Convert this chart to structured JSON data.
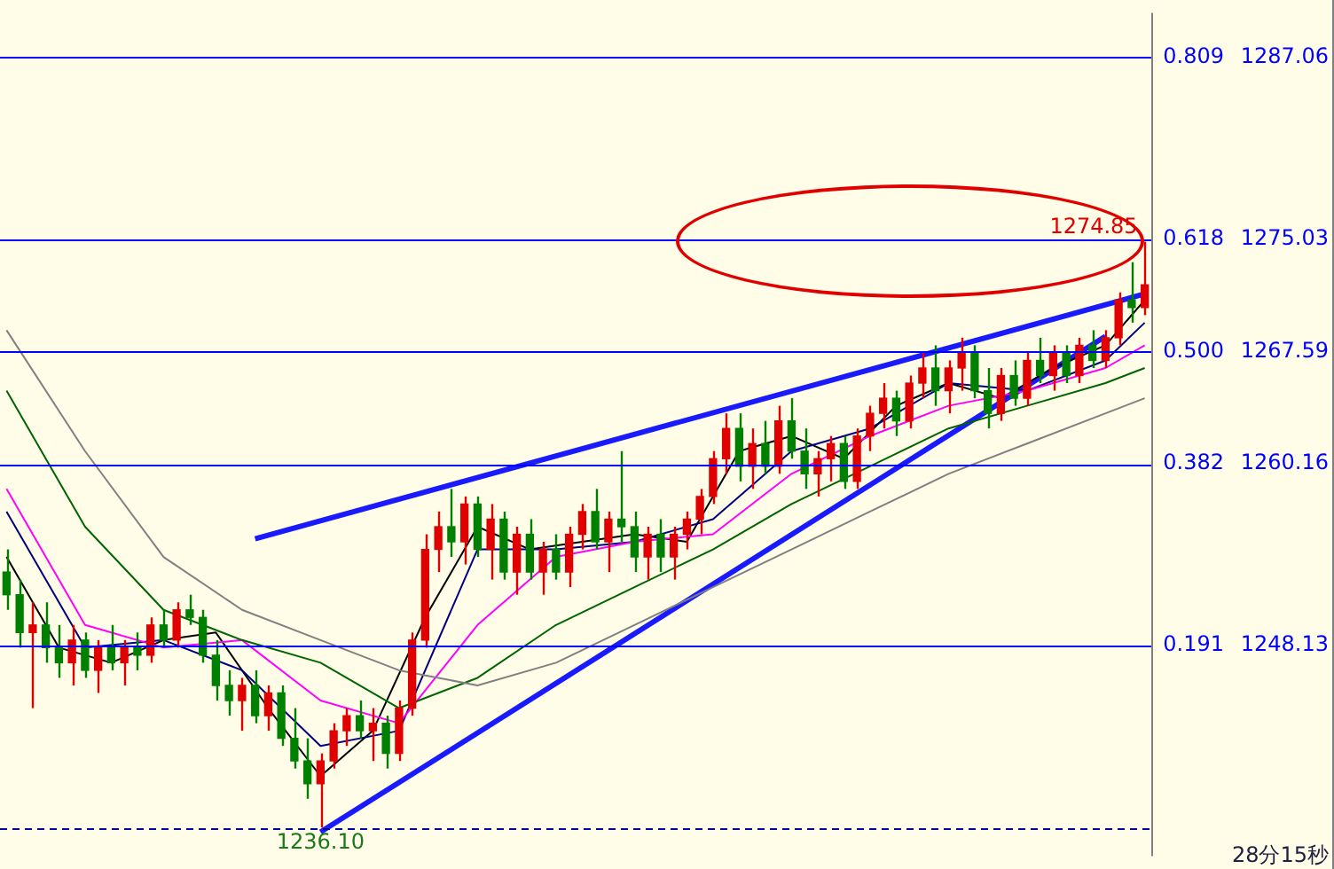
{
  "chart_data": {
    "type": "candlestick",
    "categories": [
      null,
      null,
      null,
      null,
      null,
      null,
      null,
      null,
      null,
      null,
      null,
      null,
      null,
      null,
      null,
      null,
      null,
      null,
      null,
      null,
      null,
      null,
      null,
      null,
      null,
      null,
      null,
      null,
      null,
      null,
      null,
      null,
      null,
      null,
      null,
      null,
      null,
      null,
      null,
      null,
      null,
      null,
      null,
      null,
      null,
      null,
      null,
      null,
      null,
      null,
      null,
      null,
      null,
      null,
      null,
      null,
      null,
      null,
      null,
      null,
      null,
      null,
      null,
      null,
      null,
      null,
      null,
      null,
      null,
      null,
      null,
      null,
      null,
      null,
      null,
      null,
      null,
      null,
      null,
      null,
      null,
      null,
      null,
      null,
      null,
      null,
      null,
      null
    ],
    "ylim": [
      1234.2,
      1290
    ],
    "yticks": [
      1248.13,
      1260.16,
      1267.59,
      1275.03,
      1287.06
    ],
    "y2lim": [
      -0.0302,
      0.856
    ],
    "y2ticks": [
      0.191,
      0.382,
      {
        "value": 0.5,
        "label": "0.500"
      },
      0.618,
      0.809
    ],
    "tick_labels": "y",
    "legend": false,
    "series": [
      {
        "type": "candlestick",
        "ohlc": [
          [
            1253.0,
            1254.5,
            1250.5,
            1251.5
          ],
          [
            1251.5,
            1252.5,
            1248.0,
            1249.0
          ],
          [
            1249.0,
            1251.0,
            1244.0,
            1249.5
          ],
          [
            1249.5,
            1251.0,
            1247.0,
            1248.0
          ],
          [
            1248.0,
            1249.5,
            1246.0,
            1247.0
          ],
          [
            1247.0,
            1249.5,
            1245.5,
            1248.5
          ],
          [
            1248.5,
            1249.0,
            1246.0,
            1246.5
          ],
          [
            1246.5,
            1248.5,
            1245.0,
            1248.0
          ],
          [
            1248.0,
            1249.5,
            1246.5,
            1247.0
          ],
          [
            1247.0,
            1248.5,
            1245.5,
            1248.0
          ],
          [
            1248.0,
            1249.0,
            1246.5,
            1247.5
          ],
          [
            1247.5,
            1250.0,
            1247.0,
            1249.5
          ],
          [
            1249.5,
            1250.5,
            1248.0,
            1248.5
          ],
          [
            1248.5,
            1251.0,
            1248.0,
            1250.5
          ],
          [
            1250.5,
            1251.5,
            1249.5,
            1250.0
          ],
          [
            1250.0,
            1250.5,
            1247.0,
            1247.5
          ],
          [
            1247.5,
            1248.5,
            1244.5,
            1245.5
          ],
          [
            1245.5,
            1246.5,
            1243.5,
            1244.5
          ],
          [
            1244.5,
            1246.0,
            1242.5,
            1245.5
          ],
          [
            1245.5,
            1246.5,
            1243.0,
            1243.5
          ],
          [
            1243.5,
            1245.5,
            1242.5,
            1245.0
          ],
          [
            1245.0,
            1245.5,
            1241.5,
            1242.0
          ],
          [
            1242.0,
            1244.0,
            1240.0,
            1240.5
          ],
          [
            1240.5,
            1242.0,
            1238.0,
            1239.0
          ],
          [
            1239.0,
            1241.0,
            1236.1,
            1240.5
          ],
          [
            1240.5,
            1243.0,
            1240.0,
            1242.5
          ],
          [
            1242.5,
            1244.0,
            1241.5,
            1243.5
          ],
          [
            1243.5,
            1244.5,
            1242.0,
            1242.5
          ],
          [
            1242.5,
            1244.0,
            1240.5,
            1243.0
          ],
          [
            1243.0,
            1243.5,
            1240.0,
            1241.0
          ],
          [
            1241.0,
            1244.5,
            1240.5,
            1244.0
          ],
          [
            1244.0,
            1249.0,
            1243.5,
            1248.5
          ],
          [
            1248.5,
            1255.5,
            1248.0,
            1254.5
          ],
          [
            1254.5,
            1257.0,
            1253.0,
            1256.0
          ],
          [
            1256.0,
            1258.5,
            1254.0,
            1255.0
          ],
          [
            1255.0,
            1258.0,
            1253.5,
            1257.5
          ],
          [
            1257.5,
            1258.0,
            1254.0,
            1254.5
          ],
          [
            1254.5,
            1257.5,
            1252.5,
            1256.5
          ],
          [
            1256.5,
            1257.0,
            1252.5,
            1253.0
          ],
          [
            1253.0,
            1256.0,
            1251.5,
            1255.5
          ],
          [
            1255.5,
            1256.5,
            1252.5,
            1253.0
          ],
          [
            1253.0,
            1255.0,
            1251.5,
            1254.5
          ],
          [
            1254.5,
            1255.5,
            1252.5,
            1253.0
          ],
          [
            1253.0,
            1256.0,
            1252.0,
            1255.5
          ],
          [
            1255.5,
            1257.5,
            1254.5,
            1257.0
          ],
          [
            1257.0,
            1258.5,
            1254.5,
            1255.0
          ],
          [
            1255.0,
            1257.0,
            1253.0,
            1256.5
          ],
          [
            1256.5,
            1261.0,
            1255.0,
            1256.0
          ],
          [
            1256.0,
            1257.0,
            1253.0,
            1254.0
          ],
          [
            1254.0,
            1256.0,
            1252.5,
            1255.5
          ],
          [
            1255.5,
            1256.5,
            1253.0,
            1254.0
          ],
          [
            1254.0,
            1256.0,
            1252.5,
            1255.5
          ],
          [
            1255.5,
            1257.0,
            1254.5,
            1256.5
          ],
          [
            1256.5,
            1258.5,
            1255.5,
            1258.0
          ],
          [
            1258.0,
            1261.0,
            1257.5,
            1260.5
          ],
          [
            1260.5,
            1263.5,
            1259.5,
            1262.5
          ],
          [
            1262.5,
            1263.5,
            1259.0,
            1260.0
          ],
          [
            1260.0,
            1262.5,
            1258.5,
            1261.5
          ],
          [
            1261.5,
            1263.0,
            1259.5,
            1260.0
          ],
          [
            1260.0,
            1264.0,
            1259.5,
            1263.0
          ],
          [
            1263.0,
            1264.5,
            1260.5,
            1261.0
          ],
          [
            1261.0,
            1262.5,
            1258.5,
            1259.5
          ],
          [
            1259.5,
            1261.0,
            1258.0,
            1260.5
          ],
          [
            1260.5,
            1262.0,
            1259.0,
            1261.5
          ],
          [
            1261.5,
            1262.0,
            1258.5,
            1259.0
          ],
          [
            1259.0,
            1262.5,
            1258.5,
            1262.0
          ],
          [
            1262.0,
            1264.0,
            1261.0,
            1263.5
          ],
          [
            1263.5,
            1265.5,
            1262.5,
            1264.5
          ],
          [
            1264.5,
            1265.0,
            1262.0,
            1263.0
          ],
          [
            1263.0,
            1266.0,
            1262.5,
            1265.5
          ],
          [
            1265.5,
            1267.5,
            1264.5,
            1266.5
          ],
          [
            1266.5,
            1268.0,
            1264.0,
            1265.0
          ],
          [
            1265.0,
            1267.0,
            1263.5,
            1266.5
          ],
          [
            1266.5,
            1268.5,
            1265.0,
            1267.5
          ],
          [
            1267.5,
            1268.0,
            1264.5,
            1265.0
          ],
          [
            1265.0,
            1266.5,
            1262.5,
            1263.5
          ],
          [
            1263.5,
            1266.5,
            1263.0,
            1266.0
          ],
          [
            1266.0,
            1267.0,
            1264.0,
            1264.5
          ],
          [
            1264.5,
            1267.5,
            1264.0,
            1267.0
          ],
          [
            1267.0,
            1268.5,
            1265.5,
            1266.0
          ],
          [
            1266.0,
            1268.0,
            1265.0,
            1267.5
          ],
          [
            1267.5,
            1268.0,
            1265.5,
            1266.0
          ],
          [
            1266.0,
            1268.5,
            1265.5,
            1268.0
          ],
          [
            1268.0,
            1269.0,
            1266.5,
            1267.0
          ],
          [
            1267.0,
            1269.0,
            1266.5,
            1268.5
          ],
          [
            1268.5,
            1271.5,
            1268.0,
            1271.0
          ],
          [
            1271.0,
            1273.5,
            1269.5,
            1270.5
          ],
          [
            1270.5,
            1274.85,
            1270.0,
            1272.0
          ]
        ],
        "colors": [
          "#008000",
          "#008000",
          "#e00000",
          "#008000",
          "#008000",
          "#e00000",
          "#008000",
          "#e00000",
          "#008000",
          "#e00000",
          "#008000",
          "#e00000",
          "#008000",
          "#e00000",
          "#008000",
          "#008000",
          "#008000",
          "#008000",
          "#e00000",
          "#008000",
          "#e00000",
          "#008000",
          "#008000",
          "#008000",
          "#e00000",
          "#e00000",
          "#e00000",
          "#008000",
          "#e00000",
          "#008000",
          "#e00000",
          "#e00000",
          "#e00000",
          "#e00000",
          "#008000",
          "#e00000",
          "#008000",
          "#e00000",
          "#008000",
          "#e00000",
          "#008000",
          "#e00000",
          "#008000",
          "#e00000",
          "#e00000",
          "#008000",
          "#e00000",
          "#008000",
          "#008000",
          "#e00000",
          "#008000",
          "#e00000",
          "#e00000",
          "#e00000",
          "#e00000",
          "#e00000",
          "#008000",
          "#e00000",
          "#008000",
          "#e00000",
          "#008000",
          "#008000",
          "#e00000",
          "#e00000",
          "#008000",
          "#e00000",
          "#e00000",
          "#e00000",
          "#008000",
          "#e00000",
          "#e00000",
          "#008000",
          "#e00000",
          "#e00000",
          "#008000",
          "#008000",
          "#e00000",
          "#008000",
          "#e00000",
          "#008000",
          "#e00000",
          "#008000",
          "#e00000",
          "#008000",
          "#e00000",
          "#e00000",
          "#008000",
          "#e00000"
        ]
      },
      {
        "type": "line",
        "color": "#808080",
        "values": [
          1269,
          null,
          null,
          null,
          null,
          null,
          1261,
          null,
          null,
          null,
          null,
          null,
          1254,
          null,
          null,
          null,
          null,
          null,
          1250.5,
          null,
          null,
          null,
          null,
          null,
          1248.5,
          null,
          null,
          null,
          null,
          null,
          1246.5,
          null,
          null,
          null,
          null,
          null,
          1245.5,
          null,
          null,
          null,
          null,
          null,
          1247,
          null,
          null,
          null,
          null,
          null,
          1249.5,
          null,
          null,
          null,
          null,
          null,
          1252,
          null,
          null,
          null,
          null,
          null,
          1254.5,
          null,
          null,
          null,
          null,
          null,
          1257,
          null,
          null,
          null,
          null,
          null,
          1259.5,
          null,
          null,
          null,
          null,
          null,
          1261.5,
          null,
          null,
          null,
          null,
          null,
          1263.5,
          null,
          null,
          1264.5
        ]
      },
      {
        "type": "line",
        "color": "#006400",
        "values": [
          1265,
          null,
          null,
          null,
          null,
          null,
          1256,
          null,
          null,
          null,
          null,
          null,
          1250.5,
          null,
          null,
          null,
          null,
          null,
          1248.5,
          null,
          null,
          null,
          null,
          null,
          1247,
          null,
          null,
          null,
          null,
          null,
          1244,
          null,
          null,
          null,
          null,
          null,
          1246,
          null,
          null,
          null,
          null,
          null,
          1249.5,
          null,
          null,
          null,
          null,
          null,
          1252,
          null,
          null,
          null,
          null,
          null,
          1254.5,
          null,
          null,
          null,
          null,
          null,
          1257.5,
          null,
          null,
          null,
          null,
          null,
          1260,
          null,
          null,
          null,
          null,
          null,
          1262.5,
          null,
          null,
          null,
          null,
          null,
          1264,
          null,
          null,
          null,
          null,
          null,
          1265.5,
          null,
          null,
          1266.5
        ]
      },
      {
        "type": "line",
        "color": "#ff00ff",
        "values": [
          1258.5,
          null,
          null,
          null,
          null,
          null,
          1249.5,
          null,
          null,
          null,
          null,
          null,
          1248,
          null,
          null,
          null,
          null,
          null,
          1248.5,
          null,
          null,
          null,
          null,
          null,
          1244.5,
          null,
          null,
          null,
          null,
          null,
          1243,
          null,
          null,
          null,
          null,
          null,
          1249.5,
          null,
          null,
          null,
          null,
          null,
          1254,
          null,
          null,
          null,
          null,
          null,
          1255,
          null,
          null,
          null,
          null,
          null,
          1255.5,
          null,
          null,
          null,
          null,
          null,
          1259.5,
          null,
          null,
          null,
          null,
          null,
          1262,
          null,
          null,
          null,
          null,
          null,
          1264,
          null,
          null,
          null,
          null,
          null,
          1265,
          null,
          null,
          null,
          null,
          null,
          1266.5,
          null,
          null,
          1268
        ]
      },
      {
        "type": "line",
        "color": "#000080",
        "values": [
          1257,
          null,
          null,
          null,
          null,
          null,
          1248,
          null,
          null,
          null,
          null,
          null,
          1248.5,
          null,
          null,
          null,
          null,
          null,
          1246.5,
          null,
          null,
          null,
          null,
          null,
          1241.5,
          null,
          null,
          null,
          null,
          null,
          1242.5,
          null,
          null,
          null,
          null,
          null,
          1254.5,
          null,
          null,
          null,
          null,
          null,
          1254.5,
          null,
          null,
          null,
          null,
          null,
          1255,
          null,
          null,
          null,
          null,
          null,
          1256.5,
          null,
          null,
          null,
          null,
          null,
          1261,
          null,
          null,
          null,
          null,
          null,
          1262.5,
          null,
          null,
          null,
          null,
          null,
          1265.5,
          null,
          null,
          null,
          null,
          null,
          1265,
          null,
          null,
          null,
          null,
          null,
          1267,
          null,
          null,
          1269.5
        ]
      },
      {
        "type": "line",
        "color": "#000000",
        "values": [
          1254,
          null,
          null,
          null,
          1248,
          null,
          null,
          null,
          1247,
          null,
          null,
          null,
          1248.5,
          null,
          null,
          null,
          1249,
          null,
          null,
          null,
          1244,
          null,
          null,
          null,
          1239.5,
          null,
          null,
          null,
          1242.5,
          null,
          null,
          null,
          1250,
          null,
          null,
          null,
          1256,
          null,
          null,
          null,
          1254.5,
          null,
          null,
          null,
          1255,
          null,
          null,
          null,
          1255.5,
          null,
          null,
          null,
          1255,
          null,
          null,
          null,
          1261,
          null,
          null,
          null,
          1262,
          null,
          null,
          null,
          1260.5,
          null,
          null,
          null,
          1264,
          null,
          null,
          null,
          1265.5,
          null,
          null,
          null,
          1264.5,
          null,
          null,
          null,
          1266.5,
          null,
          null,
          null,
          1268,
          null,
          null,
          1271
        ]
      },
      {
        "type": "line",
        "color": "#1a1aff",
        "values": [
          null,
          null,
          null,
          null,
          null,
          null,
          null,
          null,
          null,
          null,
          null,
          null,
          null,
          null,
          null,
          null,
          null,
          null,
          null,
          1255.2,
          null,
          null,
          null,
          null,
          null,
          null,
          null,
          null,
          null,
          null,
          null,
          null,
          null,
          null,
          null,
          null,
          null,
          null,
          null,
          null,
          null,
          null,
          null,
          null,
          null,
          null,
          null,
          null,
          null,
          null,
          null,
          null,
          null,
          null,
          null,
          null,
          null,
          null,
          null,
          null,
          null,
          null,
          null,
          null,
          null,
          null,
          null,
          null,
          null,
          null,
          null,
          null,
          null,
          null,
          null,
          null,
          null,
          null,
          null,
          null,
          null,
          null,
          null,
          null,
          null,
          null,
          null,
          1271.4
        ]
      },
      {
        "type": "line",
        "color": "#1a1aff",
        "values": [
          null,
          null,
          null,
          null,
          null,
          null,
          null,
          null,
          null,
          null,
          null,
          null,
          null,
          null,
          null,
          null,
          null,
          null,
          null,
          null,
          null,
          null,
          null,
          null,
          1235.8,
          null,
          null,
          null,
          null,
          null,
          null,
          null,
          null,
          null,
          null,
          null,
          null,
          null,
          null,
          null,
          null,
          null,
          null,
          null,
          null,
          null,
          null,
          null,
          null,
          null,
          null,
          null,
          null,
          null,
          null,
          null,
          null,
          null,
          null,
          null,
          null,
          null,
          null,
          null,
          null,
          null,
          null,
          null,
          null,
          null,
          null,
          null,
          null,
          null,
          null,
          null,
          null,
          null,
          null,
          null,
          null,
          null,
          null,
          null,
          1268.6,
          null,
          null,
          null
        ]
      }
    ],
    "ref_lines": [
      {
        "axis": "y",
        "value": 1287.06,
        "color": "#0000ff"
      },
      {
        "axis": "y",
        "value": 1275.03,
        "color": "#0000ff"
      },
      {
        "axis": "y",
        "value": 1267.59,
        "color": "#0000ff"
      },
      {
        "axis": "y",
        "value": 1260.16,
        "color": "#0000ff"
      },
      {
        "axis": "y",
        "value": 1248.13,
        "color": "#0000ff"
      },
      {
        "axis": "y",
        "value": 1236.1,
        "color": "#0000a0",
        "line_style": "dashed"
      }
    ],
    "annotations": [
      {
        "text": "1274.85",
        "y": 1274.85
      },
      {
        "text": "1236.10",
        "y": 1236.1
      },
      "28分15秒"
    ]
  }
}
